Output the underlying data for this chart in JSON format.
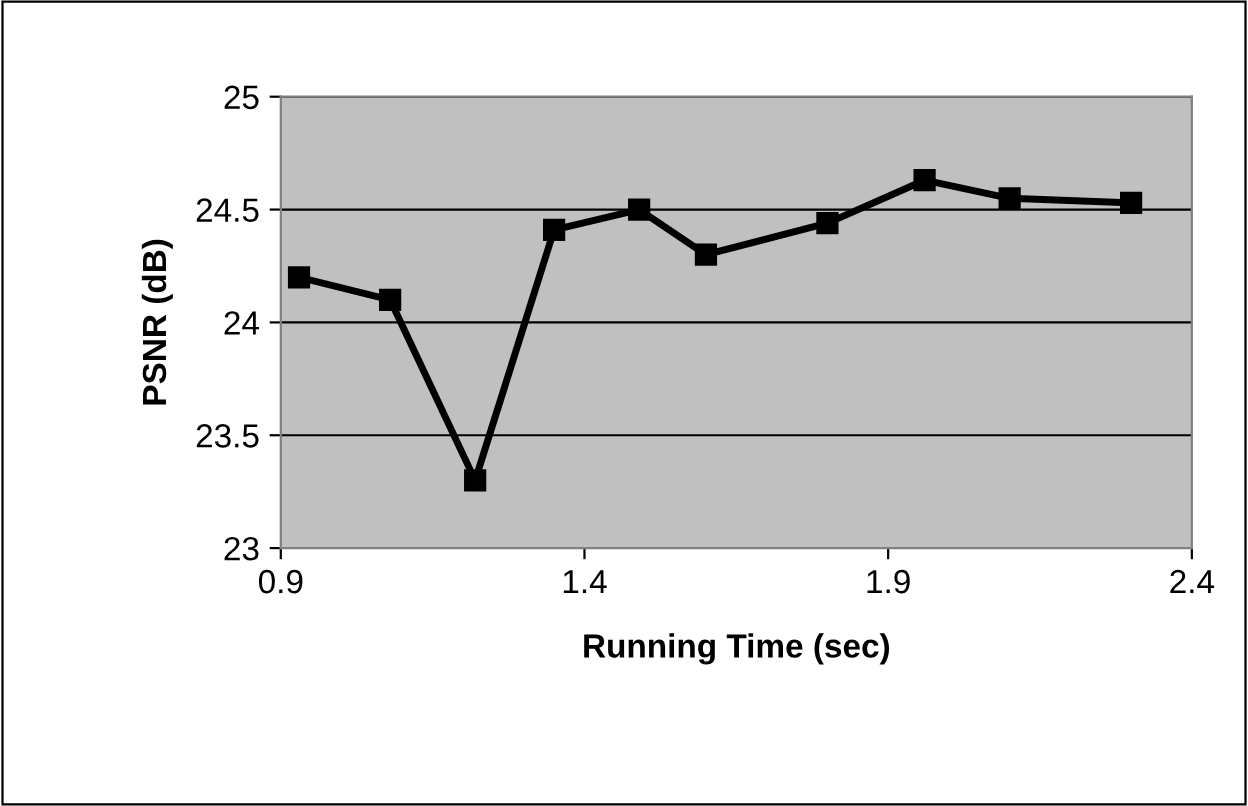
{
  "chart_data": {
    "type": "line",
    "xlabel": "Running Time (sec)",
    "ylabel": "PSNR (dB)",
    "x": [
      0.93,
      1.08,
      1.22,
      1.35,
      1.49,
      1.6,
      1.8,
      1.96,
      2.1,
      2.3
    ],
    "series": [
      {
        "color": "#000000",
        "values": [
          24.2,
          24.1,
          23.3,
          24.41,
          24.5,
          24.3,
          24.44,
          24.63,
          24.55,
          24.53
        ]
      }
    ],
    "xlim": [
      0.9,
      2.4
    ],
    "xticks": [
      0.9,
      1.4,
      1.9,
      2.4
    ],
    "ylim": [
      23,
      25
    ],
    "yticks": [
      23,
      23.5,
      24,
      24.5,
      25
    ],
    "grid": "y",
    "marker": "square",
    "line_style": "solid"
  }
}
